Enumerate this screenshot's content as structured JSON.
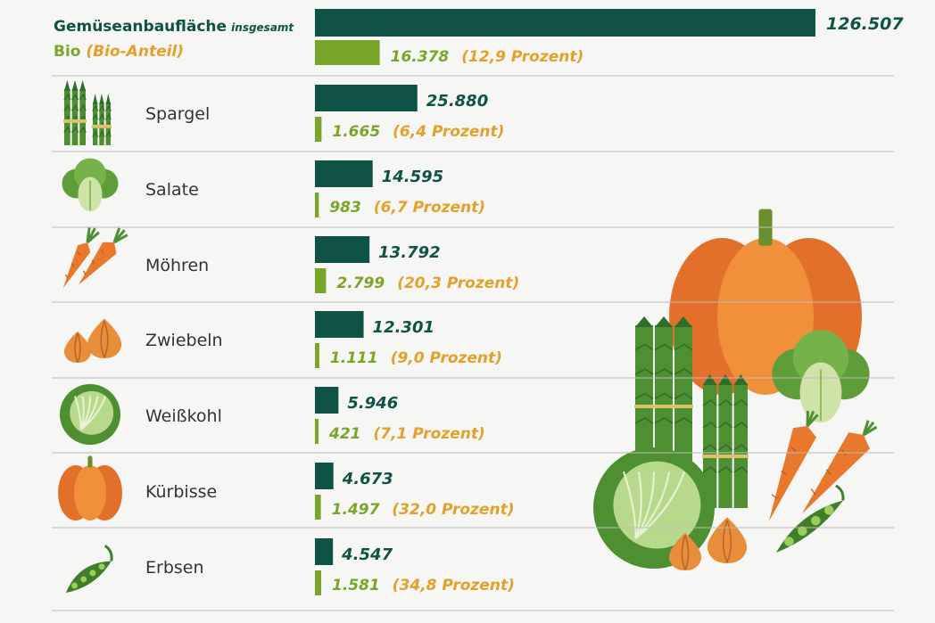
{
  "chart_data": {
    "type": "bar",
    "header": {
      "total_label": "Gemüseanbaufläche",
      "total_suffix": "insgesamt",
      "bio_label": "Bio",
      "bio_share_label": "(Bio-Anteil)"
    },
    "totals": {
      "total": 126507,
      "total_text": "126.507",
      "bio": 16378,
      "bio_text": "16.378",
      "bio_percent_text": "(12,9 Prozent)"
    },
    "categories": [
      "Spargel",
      "Salate",
      "Möhren",
      "Zwiebeln",
      "Weißkohl",
      "Kürbisse",
      "Erbsen"
    ],
    "series": [
      {
        "values": [
          25880,
          14595,
          13792,
          12301,
          5946,
          4673,
          4547
        ],
        "labels": [
          "25.880",
          "14.595",
          "13.792",
          "12.301",
          "5.946",
          "4.673",
          "4.547"
        ]
      },
      {
        "values": [
          1665,
          983,
          2799,
          1111,
          421,
          1497,
          1581
        ],
        "labels": [
          "1.665",
          "983",
          "2.799",
          "1.111",
          "421",
          "1.497",
          "1.581"
        ],
        "percent_labels": [
          "(6,4 Prozent)",
          "(6,7 Prozent)",
          "(20,3 Prozent)",
          "(9,0 Prozent)",
          "(7,1 Prozent)",
          "(32,0 Prozent)",
          "(34,8 Prozent)"
        ]
      }
    ],
    "colors": {
      "total": "#0f5246",
      "bio": "#7aa52b",
      "percent": "#e3a02a",
      "divider": "#bbbbbb",
      "label": "#333333"
    },
    "icons": [
      "asparagus-icon",
      "lettuce-icon",
      "carrot-icon",
      "onion-icon",
      "cabbage-icon",
      "pumpkin-icon",
      "peas-icon"
    ],
    "illustration": "vegetable-group-illustration"
  }
}
